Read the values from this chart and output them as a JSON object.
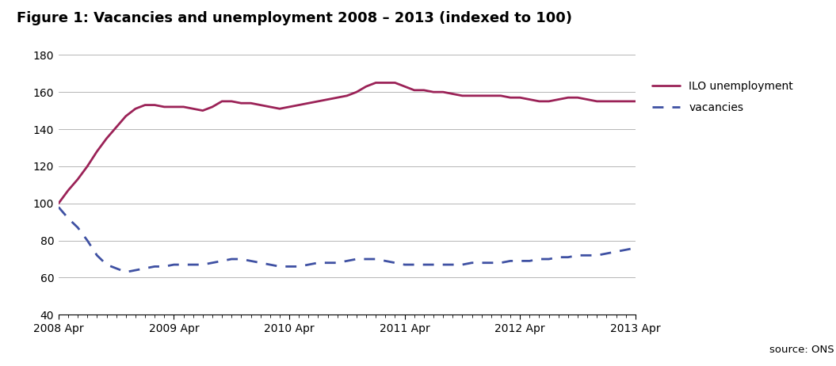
{
  "title": "Figure 1: Vacancies and unemployment 2008 – 2013 (indexed to 100)",
  "ylim": [
    40,
    180
  ],
  "yticks": [
    40,
    60,
    80,
    100,
    120,
    140,
    160,
    180
  ],
  "x_tick_labels": [
    "2008 Apr",
    "2009 Apr",
    "2010 Apr",
    "2011 Apr",
    "2012 Apr",
    "2013 Apr"
  ],
  "x_tick_positions": [
    0,
    12,
    24,
    36,
    48,
    60
  ],
  "source_text": "source: ONS",
  "unemployment_color": "#9B2257",
  "vacancies_color": "#3F51A3",
  "background_color": "#ffffff",
  "unemployment": [
    100,
    107,
    113,
    120,
    128,
    135,
    141,
    147,
    151,
    153,
    153,
    152,
    152,
    152,
    151,
    150,
    152,
    155,
    155,
    154,
    154,
    153,
    152,
    151,
    152,
    153,
    154,
    155,
    156,
    157,
    158,
    160,
    163,
    165,
    165,
    165,
    163,
    161,
    161,
    160,
    160,
    159,
    158,
    158,
    158,
    158,
    158,
    157,
    157,
    156,
    155,
    155,
    156,
    157,
    157,
    156,
    155,
    155,
    155,
    155,
    155
  ],
  "vacancies": [
    98,
    92,
    87,
    80,
    72,
    67,
    65,
    63,
    64,
    65,
    66,
    66,
    67,
    67,
    67,
    67,
    68,
    69,
    70,
    70,
    69,
    68,
    67,
    66,
    66,
    66,
    67,
    68,
    68,
    68,
    69,
    70,
    70,
    70,
    69,
    68,
    67,
    67,
    67,
    67,
    67,
    67,
    67,
    68,
    68,
    68,
    68,
    69,
    69,
    69,
    70,
    70,
    71,
    71,
    72,
    72,
    72,
    73,
    74,
    75,
    76
  ]
}
